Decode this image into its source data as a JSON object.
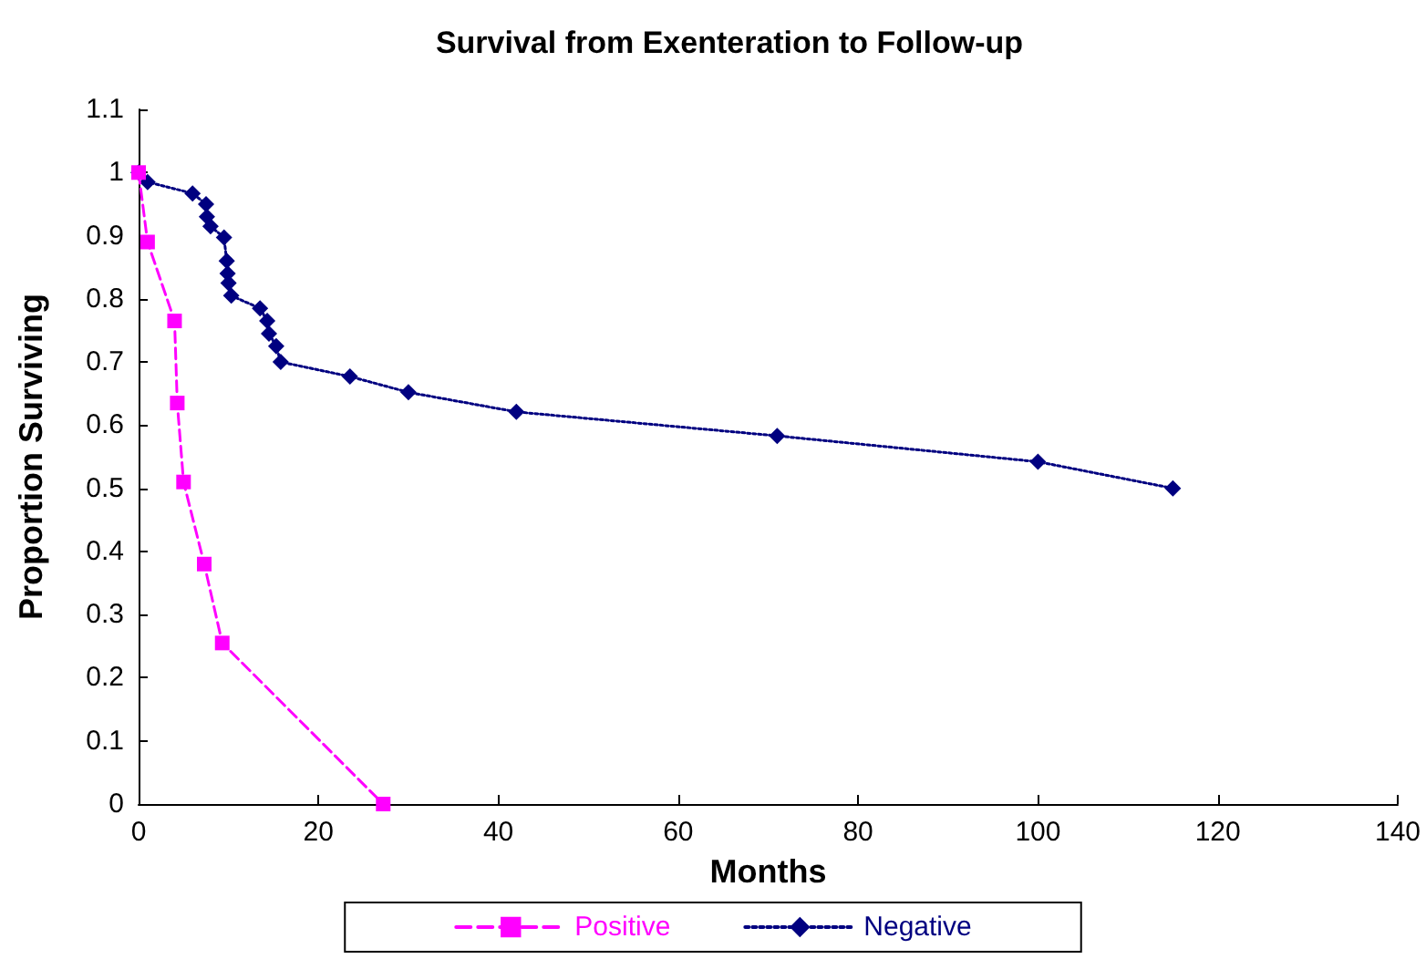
{
  "chart_data": {
    "type": "line",
    "title": "Survival from Exenteration to Follow-up",
    "xlabel": "Months",
    "ylabel": "Proportion Surviving",
    "xlim": [
      0,
      140
    ],
    "xticks": [
      0,
      20,
      40,
      60,
      80,
      100,
      120,
      140
    ],
    "ylim": [
      0,
      1.1
    ],
    "yticks": [
      0,
      0.1,
      0.2,
      0.3,
      0.4,
      0.5,
      0.6,
      0.7,
      0.8,
      0.9,
      1,
      1.1
    ],
    "grid": false,
    "legend": "bottom",
    "series": [
      {
        "name": "Positive",
        "color": "#ff00ff",
        "marker": "square",
        "line_style": "dashed",
        "x": [
          0,
          1,
          4,
          4.3,
          5,
          7.3,
          9.3,
          27.2
        ],
        "values": [
          1,
          0.89,
          0.765,
          0.635,
          0.51,
          0.38,
          0.255,
          0
        ]
      },
      {
        "name": "Negative",
        "color": "#000080",
        "marker": "diamond",
        "line_style": "dotted",
        "x": [
          0,
          1,
          6,
          7.5,
          7.6,
          8,
          9.5,
          9.8,
          9.9,
          10,
          10.3,
          13.5,
          14.3,
          14.5,
          15.3,
          15.8,
          23.5,
          30,
          42,
          71,
          100,
          115
        ],
        "values": [
          1,
          0.985,
          0.967,
          0.95,
          0.93,
          0.915,
          0.897,
          0.86,
          0.84,
          0.825,
          0.805,
          0.785,
          0.765,
          0.745,
          0.725,
          0.7,
          0.677,
          0.652,
          0.621,
          0.583,
          0.542,
          0.5
        ]
      }
    ]
  }
}
